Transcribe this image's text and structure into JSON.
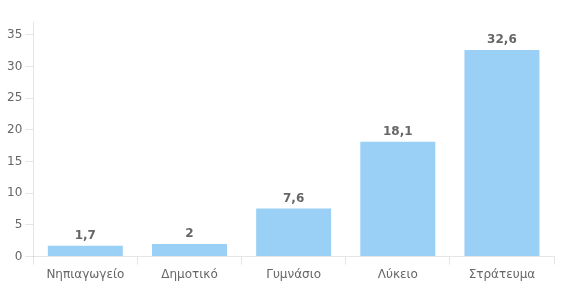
{
  "chart_data": {
    "type": "bar",
    "categories": [
      "Νηπιαγωγείο",
      "Δημοτικό",
      "Γυμνάσιο",
      "Λύκειο",
      "Στράτευμα"
    ],
    "values": [
      1.7,
      2.0,
      7.6,
      18.1,
      32.6
    ],
    "value_labels": [
      "1,7",
      "2",
      "7,6",
      "18,1",
      "32,6"
    ],
    "data_labels": true,
    "ylim": [
      0,
      37
    ],
    "yticks": [
      0,
      5,
      10,
      15,
      20,
      25,
      30,
      35
    ],
    "grid": false
  }
}
